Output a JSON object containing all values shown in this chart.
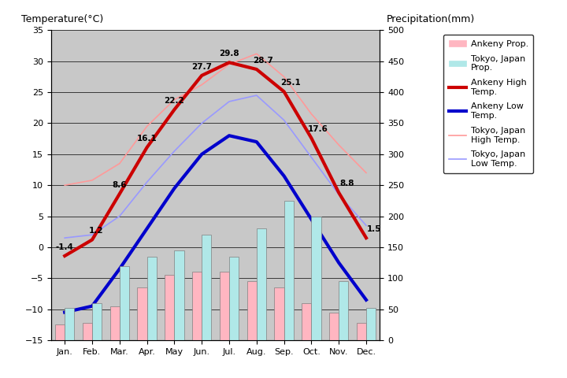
{
  "months": [
    "Jan.",
    "Feb.",
    "Mar.",
    "Apr.",
    "May",
    "Jun.",
    "Jul.",
    "Aug.",
    "Sep.",
    "Oct.",
    "Nov.",
    "Dec."
  ],
  "ankeny_high": [
    -1.4,
    1.2,
    8.6,
    16.1,
    22.2,
    27.7,
    29.8,
    28.7,
    25.1,
    17.6,
    8.8,
    1.5
  ],
  "ankeny_low": [
    -10.5,
    -9.5,
    -3.5,
    3.0,
    9.5,
    15.0,
    18.0,
    17.0,
    11.5,
    4.5,
    -2.5,
    -8.5
  ],
  "tokyo_high": [
    10.0,
    10.8,
    13.5,
    19.5,
    23.8,
    26.2,
    29.5,
    31.2,
    27.5,
    21.5,
    16.5,
    12.0
  ],
  "tokyo_low": [
    1.5,
    2.0,
    5.0,
    10.5,
    15.5,
    20.0,
    23.5,
    24.5,
    20.5,
    14.5,
    8.5,
    3.5
  ],
  "ankeny_precip_mm": [
    25,
    28,
    55,
    85,
    105,
    110,
    110,
    95,
    85,
    60,
    45,
    28
  ],
  "tokyo_precip_mm": [
    52,
    60,
    120,
    135,
    145,
    170,
    135,
    180,
    225,
    200,
    95,
    52
  ],
  "temp_ylim": [
    -15,
    35
  ],
  "precip_ylim": [
    0,
    500
  ],
  "temp_yticks": [
    -15,
    -10,
    -5,
    0,
    5,
    10,
    15,
    20,
    25,
    30,
    35
  ],
  "precip_yticks": [
    0,
    50,
    100,
    150,
    200,
    250,
    300,
    350,
    400,
    450,
    500
  ],
  "ankeny_high_color": "#CC0000",
  "ankeny_low_color": "#0000CC",
  "tokyo_high_color": "#FF9999",
  "tokyo_low_color": "#9999FF",
  "ankeny_precip_color": "#FFB6C1",
  "tokyo_precip_color": "#B0E8E8",
  "bg_color": "#C8C8C8",
  "label_left": "Temperature(°C)",
  "label_right": "Precipitation(mm)",
  "high_label_xadj": [
    0.0,
    0.15,
    0.0,
    0.0,
    0.0,
    0.0,
    0.0,
    0.25,
    0.25,
    0.25,
    0.3,
    0.3
  ],
  "high_label_yadj": [
    0.8,
    0.8,
    0.8,
    0.8,
    0.8,
    0.8,
    0.8,
    0.8,
    0.8,
    0.8,
    0.8,
    0.8
  ]
}
